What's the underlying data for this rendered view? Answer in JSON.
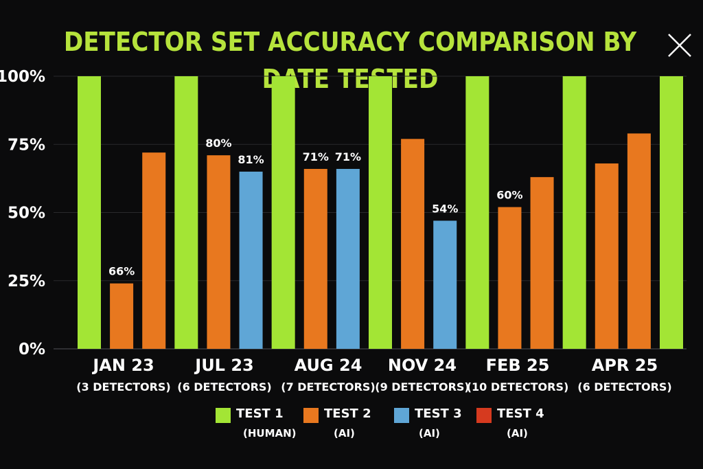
{
  "chart_data": {
    "type": "bar",
    "title": "DETECTOR SET ACCURACY COMPARISON BY DATE TESTED",
    "xlabel": "",
    "ylabel": "",
    "ylim": [
      0,
      100
    ],
    "yticks": [
      "100%",
      "75%",
      "50%",
      "25%",
      "0%"
    ],
    "grid": true,
    "legend": "bottom",
    "categories": [
      "JAN 23",
      "JUL 23",
      "AUG 24",
      "NOV 24",
      "FEB 25",
      "APR 25"
    ],
    "category_notes": [
      "(3 DETECTORS)",
      "(6 DETECTORS)",
      "(7 DETECTORS)",
      "(9 DETECTORS)",
      "(10 DETECTORS)",
      "(6 DETECTORS)"
    ],
    "series": [
      {
        "name": "TEST 1",
        "note": "(HUMAN)",
        "color": "#a3e535"
      },
      {
        "name": "TEST 2",
        "note": "(AI)",
        "color": "#e8781f"
      },
      {
        "name": "TEST 3",
        "note": "(AI)",
        "color": "#5fa6d6"
      },
      {
        "name": "TEST 4",
        "note": "(AI)",
        "color": "#d63a1f"
      }
    ],
    "bars": [
      {
        "series": 0,
        "value": 100
      },
      {
        "series": 1,
        "value": 24,
        "label": "66%"
      },
      {
        "series": 1,
        "value": 72
      },
      {
        "series": 0,
        "value": 100
      },
      {
        "series": 1,
        "value": 71,
        "label": "80%"
      },
      {
        "series": 2,
        "value": 65,
        "label": "81%"
      },
      {
        "series": 0,
        "value": 100
      },
      {
        "series": 1,
        "value": 66,
        "label": "71%"
      },
      {
        "series": 2,
        "value": 66,
        "label": "71%"
      },
      {
        "series": 0,
        "value": 100
      },
      {
        "series": 1,
        "value": 77
      },
      {
        "series": 2,
        "value": 47,
        "label": "54%"
      },
      {
        "series": 0,
        "value": 100
      },
      {
        "series": 1,
        "value": 52,
        "label": "60%"
      },
      {
        "series": 1,
        "value": 63
      },
      {
        "series": 0,
        "value": 100
      },
      {
        "series": 1,
        "value": 68
      },
      {
        "series": 1,
        "value": 79
      },
      {
        "series": 0,
        "value": 100
      }
    ]
  },
  "controls": {
    "close_icon": "close-icon"
  }
}
